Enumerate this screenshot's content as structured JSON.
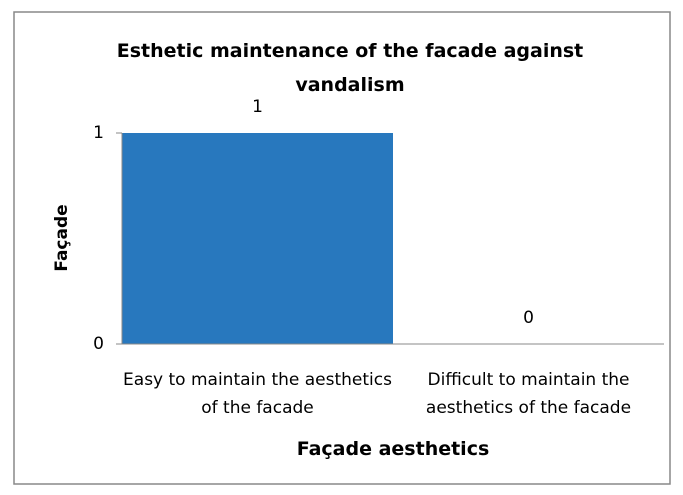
{
  "chart_data": {
    "type": "bar",
    "title": "Esthetic maintenance of the facade against vandalism",
    "categories": [
      "Easy to maintain the aesthetics of the facade",
      "Difficult to maintain the aesthetics of the facade"
    ],
    "values": [
      1,
      0
    ],
    "color": "#2878be",
    "xlabel": "Façade aesthetics",
    "ylabel": "Façade",
    "ylim": [
      0,
      1
    ],
    "yticks": [
      0,
      1
    ],
    "grid": false
  }
}
